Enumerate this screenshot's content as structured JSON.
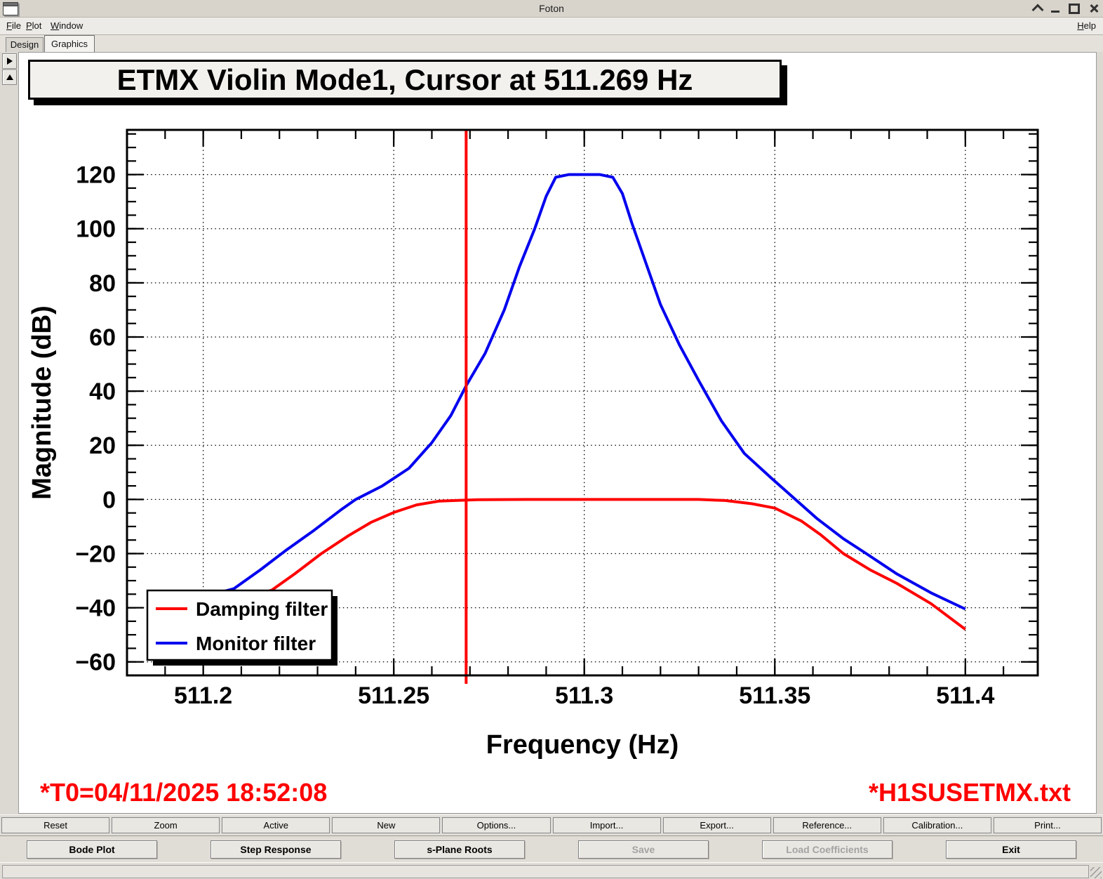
{
  "window": {
    "title": "Foton",
    "control_icons": [
      "shade-icon",
      "minimize-icon",
      "maximize-icon",
      "close-icon"
    ]
  },
  "menu": {
    "items": [
      "File",
      "Plot",
      "Window"
    ],
    "help": "Help"
  },
  "tabs": [
    {
      "label": "Design",
      "active": false
    },
    {
      "label": "Graphics",
      "active": true
    }
  ],
  "side_panel_icons": [
    "right-arrow-icon",
    "up-arrow-icon"
  ],
  "plot": {
    "title": "ETMX Violin Mode1, Cursor at 511.269 Hz",
    "annotations": {
      "left": "*T0=04/11/2025 18:52:08",
      "right": "*H1SUSETMX.txt",
      "color": "#ff0000"
    }
  },
  "chart_data": {
    "type": "line",
    "title": "ETMX Violin Mode1, Cursor at 511.269 Hz",
    "xlabel": "Frequency (Hz)",
    "ylabel": "Magnitude (dB)",
    "xlim": [
      511.18,
      511.419
    ],
    "ylim": [
      -65,
      136.5
    ],
    "xticks": [
      511.2,
      511.25,
      511.3,
      511.35,
      511.4
    ],
    "xtick_labels": [
      "511.2",
      "511.25",
      "511.3",
      "511.35",
      "511.4"
    ],
    "yticks": [
      -60,
      -40,
      -20,
      0,
      20,
      40,
      60,
      80,
      100,
      120
    ],
    "ytick_labels": [
      "−60",
      "−40",
      "−20",
      "0",
      "20",
      "40",
      "60",
      "80",
      "100",
      "120"
    ],
    "x_minor_step": 0.01,
    "y_minor_step": 5,
    "grid": "dotted-at-major-ticks",
    "cursor": {
      "x": 511.269,
      "color": "#ff0000"
    },
    "legend": {
      "position": "bottom-left",
      "entries": [
        {
          "label": "Damping filter",
          "color": "#ff0000"
        },
        {
          "label": "Monitor filter",
          "color": "#0000ee"
        }
      ]
    },
    "series": [
      {
        "name": "Damping filter",
        "color": "#ff0000",
        "points": [
          [
            511.2,
            -44
          ],
          [
            511.206,
            -39
          ],
          [
            511.212,
            -36
          ],
          [
            511.218,
            -33.5
          ],
          [
            511.224,
            -27.5
          ],
          [
            511.231,
            -20
          ],
          [
            511.238,
            -13.5
          ],
          [
            511.244,
            -8.5
          ],
          [
            511.25,
            -4.8
          ],
          [
            511.256,
            -2.0
          ],
          [
            511.262,
            -0.6
          ],
          [
            511.272,
            -0.1
          ],
          [
            511.285,
            0
          ],
          [
            511.3,
            0
          ],
          [
            511.315,
            0
          ],
          [
            511.33,
            0
          ],
          [
            511.337,
            -0.4
          ],
          [
            511.344,
            -1.6
          ],
          [
            511.35,
            -3.2
          ],
          [
            511.357,
            -8
          ],
          [
            511.362,
            -13
          ],
          [
            511.368,
            -20
          ],
          [
            511.375,
            -26
          ],
          [
            511.382,
            -31
          ],
          [
            511.391,
            -38.5
          ],
          [
            511.4,
            -48
          ]
        ]
      },
      {
        "name": "Monitor filter",
        "color": "#0000ee",
        "points": [
          [
            511.2,
            -36
          ],
          [
            511.208,
            -33
          ],
          [
            511.215,
            -26
          ],
          [
            511.222,
            -18.5
          ],
          [
            511.229,
            -11.5
          ],
          [
            511.236,
            -4
          ],
          [
            511.24,
            0
          ],
          [
            511.247,
            5
          ],
          [
            511.254,
            11.5
          ],
          [
            511.26,
            21
          ],
          [
            511.265,
            31
          ],
          [
            511.269,
            42
          ],
          [
            511.274,
            54
          ],
          [
            511.279,
            70
          ],
          [
            511.283,
            86
          ],
          [
            511.287,
            100
          ],
          [
            511.29,
            112
          ],
          [
            511.2925,
            119
          ],
          [
            511.296,
            120
          ],
          [
            511.304,
            120
          ],
          [
            511.3075,
            119
          ],
          [
            511.31,
            113
          ],
          [
            511.3125,
            102
          ],
          [
            511.316,
            88
          ],
          [
            511.32,
            72
          ],
          [
            511.325,
            57
          ],
          [
            511.33,
            44
          ],
          [
            511.336,
            29
          ],
          [
            511.342,
            17
          ],
          [
            511.349,
            8
          ],
          [
            511.355,
            0.5
          ],
          [
            511.361,
            -7
          ],
          [
            511.368,
            -14.5
          ],
          [
            511.374,
            -20
          ],
          [
            511.382,
            -27.5
          ],
          [
            511.391,
            -34.5
          ],
          [
            511.4,
            -40.5
          ]
        ]
      }
    ]
  },
  "toolbars": {
    "row1": [
      "Reset",
      "Zoom",
      "Active",
      "New",
      "Options...",
      "Import...",
      "Export...",
      "Reference...",
      "Calibration...",
      "Print..."
    ],
    "row2": [
      {
        "label": "Bode Plot",
        "enabled": true
      },
      {
        "label": "Step Response",
        "enabled": true
      },
      {
        "label": "s-Plane Roots",
        "enabled": true
      },
      {
        "label": "Save",
        "enabled": false
      },
      {
        "label": "Load Coefficients",
        "enabled": false
      },
      {
        "label": "Exit",
        "enabled": true
      }
    ]
  },
  "colors": {
    "curve_red": "#ff0000",
    "curve_blue": "#0000ee",
    "annotation_red": "#ff0000"
  }
}
